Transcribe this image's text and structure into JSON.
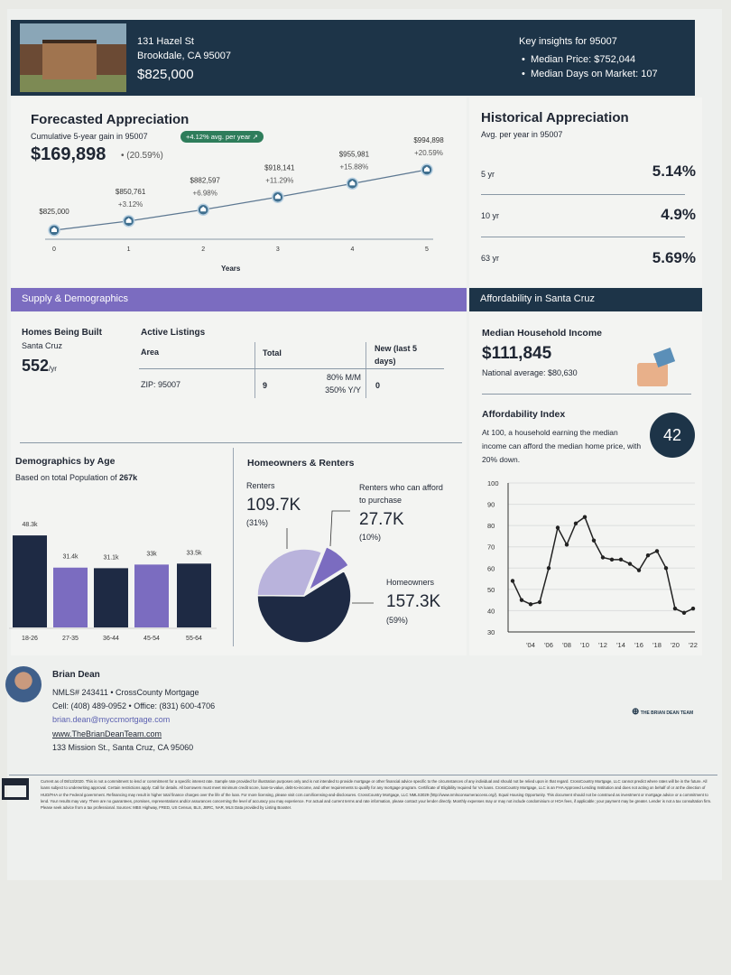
{
  "header": {
    "address_line1": "131 Hazel St",
    "address_line2": "Brookdale, CA 95007",
    "price": "$825,000",
    "insights_title": "Key insights for 95007",
    "insights": [
      "Median Price: $752,044",
      "Median Days on Market: 107"
    ]
  },
  "forecast": {
    "title": "Forecasted Appreciation",
    "subtitle": "Cumulative 5-year gain in 95007",
    "badge": "+4.12% avg. per year",
    "gain": "$169,898",
    "gain_pct": "• (20.59%)"
  },
  "historical": {
    "title": "Historical Appreciation",
    "subtitle": "Avg. per year in 95007",
    "rows": [
      {
        "label": "5 yr",
        "value": "5.14%"
      },
      {
        "label": "10 yr",
        "value": "4.9%"
      },
      {
        "label": "63 yr",
        "value": "5.69%"
      }
    ]
  },
  "supply": {
    "band": "Supply & Demographics",
    "homes_title": "Homes Being Built",
    "homes_area": "Santa Cruz",
    "homes_value": "552",
    "homes_unit": "/yr",
    "listings_title": "Active Listings",
    "col_area": "Area",
    "col_total": "Total",
    "col_new": "New (last 5 days)",
    "row_area": "ZIP: 95007",
    "row_total": "9",
    "row_mm": "80% M/M",
    "row_yy": "350%  Y/Y",
    "row_new": "0"
  },
  "demographics": {
    "title": "Demographics by Age",
    "subtitle_prefix": "Based on total Population of ",
    "population": "267k"
  },
  "owners": {
    "title": "Homeowners & Renters",
    "renters_label": "Renters",
    "renters_value": "109.7K",
    "renters_pct": "(31%)",
    "afford_label": "Renters who can afford to purchase",
    "afford_value": "27.7K",
    "afford_pct": "(10%)",
    "owners_label": "Homeowners",
    "owners_value": "157.3K",
    "owners_pct": "(59%)"
  },
  "affordability": {
    "band": "Affordability in Santa Cruz",
    "income_title": "Median Household Income",
    "income_value": "$111,845",
    "national": "National average: $80,630",
    "index_title": "Affordability Index",
    "index_desc": "At 100, a household earning the median income can afford the median home price, with 20% down.",
    "index_value": "42"
  },
  "agent": {
    "name": "Brian Dean",
    "nmls": "NMLS# 243411 • CrossCounty Mortgage",
    "phones": "Cell: (408) 489-0952 • Office: (831) 600-4706",
    "email": "brian.dean@myccmortgage.com",
    "website": "www.TheBrianDeanTeam.com",
    "address": "133 Mission St., Santa Cruz, CA 95060",
    "logo_text": "THE BRIAN DEAN TEAM"
  },
  "disclaimer": "Current as of 08/13/2020. This is not a commitment to lend or commitment for a specific interest rate. Sample rate provided for illustration purposes only and is not intended to provide mortgage or other financial advice specific to the circumstances of any individual and should not be relied upon in that regard. CrossCountry Mortgage, LLC cannot predict where rates will be in the future. All loans subject to underwriting approval. Certain restrictions apply. Call for details. All borrowers must meet minimum credit score, loan-to-value, debt-to-income, and other requirements to qualify for any mortgage program. Certificate of Eligibility required for VA loans. CrossCountry Mortgage, LLC is an FHA Approved Lending Institution and does not acting on behalf of or at the direction of HUD/FHA or the Federal government. Refinancing may result in higher total finance charges over the life of the loan. For more licensing, please visit ccm.com/licensing-and-disclosures. CrossCountry Mortgage, LLC NMLS3029 (http://www.nmlsconsumeraccess.org/). Equal Housing Opportunity. This document should not be construed as investment or mortgage advice or a commitment to lend. Your results may vary. There are no guarantees, promises, representations and/or assurances concerning the level of accuracy you may experience. For actual and current terms and rate information, please contact your lender directly. Monthly expenses may or may not include condominium or HOA fees, if applicable; your payment may be greater. Lender is not a tax consultation firm. Please seek advice from a tax professional. Sources: MBS Highway, FRED, US Census, BLS, JBRC, NAR, MLS Data provided by Listing Booster.",
  "colors": {
    "navy": "#1d3448",
    "purple": "#7b6cc0",
    "lavender": "#b9b3dc",
    "dark_bar": "#1e2a44",
    "badge_green": "#2e7d5b"
  },
  "chart_data": [
    {
      "type": "line",
      "x": [
        0,
        1,
        2,
        3,
        4,
        5
      ],
      "values": [
        825000,
        850761,
        882597,
        918141,
        955981,
        994898
      ],
      "labels": [
        "$825,000",
        "$850,761",
        "$882,597",
        "$918,141",
        "$955,981",
        "$994,898"
      ],
      "pct_labels": [
        "",
        "+3.12%",
        "+6.98%",
        "+11.29%",
        "+15.88%",
        "+20.59%"
      ],
      "xlabel": "Years",
      "marker": "home-icon"
    },
    {
      "type": "bar",
      "categories": [
        "18-26",
        "27-35",
        "36-44",
        "45-54",
        "55-64"
      ],
      "values": [
        48.3,
        31.4,
        31.1,
        33,
        33.5
      ],
      "value_labels": [
        "48.3k",
        "31.4k",
        "31.1k",
        "33k",
        "33.5k"
      ]
    },
    {
      "type": "pie",
      "slices": [
        {
          "name": "Homeowners",
          "value": 59
        },
        {
          "name": "Renters who can afford to purchase",
          "value": 10
        },
        {
          "name": "Renters",
          "value": 31
        }
      ]
    },
    {
      "type": "line",
      "x": [
        2002,
        2003,
        2004,
        2005,
        2006,
        2007,
        2008,
        2009,
        2010,
        2011,
        2012,
        2013,
        2014,
        2015,
        2016,
        2017,
        2018,
        2019,
        2020,
        2021,
        2022
      ],
      "values": [
        54,
        45,
        43,
        44,
        60,
        79,
        71,
        81,
        84,
        73,
        65,
        64,
        64,
        62,
        59,
        66,
        68,
        60,
        41,
        39,
        41
      ],
      "ylim": [
        30,
        100
      ],
      "yticks": [
        30,
        40,
        50,
        60,
        70,
        80,
        90,
        100
      ],
      "xticks": [
        "'04",
        "'06",
        "'08",
        "'10",
        "'12",
        "'14",
        "'16",
        "'18",
        "'20",
        "'22"
      ],
      "grid": true
    }
  ]
}
